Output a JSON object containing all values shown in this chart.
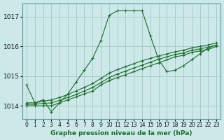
{
  "title": "Graphe pression niveau de la mer (hPa)",
  "background_color": "#cce8e8",
  "grid_color": "#aacccc",
  "line_color": "#1a6b2a",
  "xlim": [
    -0.5,
    23.5
  ],
  "ylim": [
    1013.55,
    1017.45
  ],
  "yticks": [
    1014,
    1015,
    1016,
    1017
  ],
  "xticks": [
    0,
    1,
    2,
    3,
    4,
    5,
    6,
    7,
    8,
    9,
    10,
    11,
    12,
    13,
    14,
    15,
    16,
    17,
    18,
    19,
    20,
    21,
    22,
    23
  ],
  "series": [
    {
      "x": [
        0,
        1,
        2,
        3,
        4,
        5,
        6,
        7,
        8,
        9,
        10,
        11,
        12,
        13,
        14,
        15,
        16,
        17,
        18,
        19,
        20,
        21,
        22,
        23
      ],
      "y": [
        1014.7,
        1014.1,
        1014.2,
        1013.8,
        1014.1,
        1014.4,
        1014.8,
        1015.2,
        1015.6,
        1016.2,
        1017.05,
        1017.2,
        1017.2,
        1017.2,
        1017.2,
        1016.35,
        1015.55,
        1015.15,
        1015.2,
        1015.35,
        1015.55,
        1015.75,
        1015.95,
        1016.05
      ]
    },
    {
      "x": [
        0,
        1,
        2,
        3,
        4,
        5,
        6,
        7,
        8,
        9,
        10,
        11,
        12,
        13,
        14,
        15,
        16,
        17,
        18,
        19,
        20,
        21,
        22,
        23
      ],
      "y": [
        1014.0,
        1014.0,
        1014.0,
        1014.0,
        1014.1,
        1014.2,
        1014.3,
        1014.4,
        1014.5,
        1014.7,
        1014.85,
        1014.95,
        1015.05,
        1015.15,
        1015.25,
        1015.35,
        1015.45,
        1015.55,
        1015.65,
        1015.7,
        1015.8,
        1015.85,
        1015.9,
        1016.0
      ]
    },
    {
      "x": [
        0,
        1,
        2,
        3,
        4,
        5,
        6,
        7,
        8,
        9,
        10,
        11,
        12,
        13,
        14,
        15,
        16,
        17,
        18,
        19,
        20,
        21,
        22,
        23
      ],
      "y": [
        1014.05,
        1014.05,
        1014.08,
        1014.1,
        1014.18,
        1014.28,
        1014.38,
        1014.5,
        1014.62,
        1014.78,
        1014.95,
        1015.07,
        1015.17,
        1015.27,
        1015.37,
        1015.47,
        1015.57,
        1015.65,
        1015.73,
        1015.78,
        1015.87,
        1015.92,
        1015.97,
        1016.05
      ]
    },
    {
      "x": [
        0,
        1,
        2,
        3,
        4,
        5,
        6,
        7,
        8,
        9,
        10,
        11,
        12,
        13,
        14,
        15,
        16,
        17,
        18,
        19,
        20,
        21,
        22,
        23
      ],
      "y": [
        1014.1,
        1014.1,
        1014.15,
        1014.2,
        1014.28,
        1014.38,
        1014.5,
        1014.62,
        1014.75,
        1014.92,
        1015.1,
        1015.22,
        1015.32,
        1015.42,
        1015.52,
        1015.6,
        1015.68,
        1015.75,
        1015.82,
        1015.87,
        1015.95,
        1016.0,
        1016.05,
        1016.12
      ]
    }
  ]
}
